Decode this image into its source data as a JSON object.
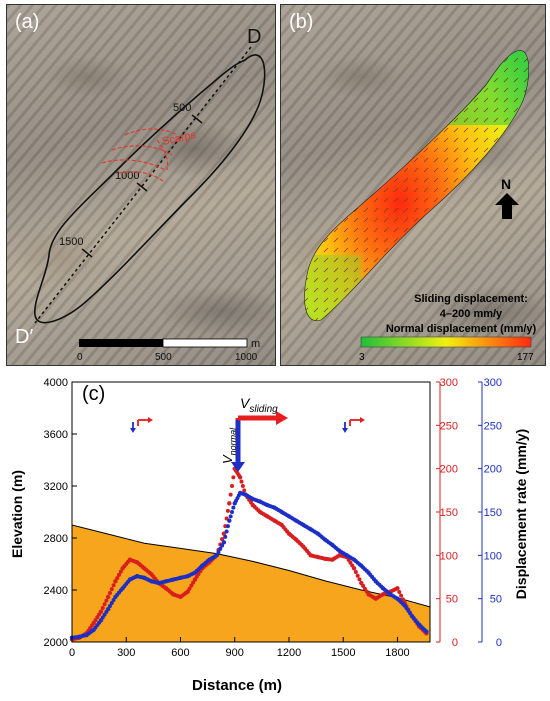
{
  "panel_a": {
    "label": "(a)",
    "endpoint_top": "D",
    "endpoint_bottom": "D′",
    "distance_marks": [
      "500",
      "1000",
      "1500"
    ],
    "scarps_label": "Scarps",
    "scarps_color": "#e8322a",
    "scalebar": {
      "unit": "m",
      "ticks": [
        "0",
        "500",
        "1000"
      ]
    }
  },
  "panel_b": {
    "label": "(b)",
    "north_label": "N",
    "legend_title_1": "Sliding displacement:",
    "legend_title_2": "4–200 mm/y",
    "legend_title_3": "Normal displacement (mm/y)",
    "colorbar_min": "3",
    "colorbar_max": "177",
    "colorbar_colors": [
      "#1fbf3a",
      "#f1f10f",
      "#ff2a10"
    ]
  },
  "panel_c": {
    "label": "(c)",
    "arrow_sliding_label": "V",
    "arrow_sliding_sub": "sliding",
    "arrow_normal_label": "V",
    "arrow_normal_sub": "normal",
    "xlabel": "Distance (m)",
    "ylabel_left": "Elevation (m)",
    "ylabel_right": "Displacement rate (mm/y)",
    "x_ticks": [
      "0",
      "300",
      "600",
      "900",
      "1200",
      "1500",
      "1800"
    ],
    "y_left_ticks": [
      "2000",
      "2400",
      "2800",
      "3200",
      "3600",
      "4000"
    ],
    "y_right_red_ticks": [
      "0",
      "50",
      "100",
      "150",
      "200",
      "250",
      "300"
    ],
    "y_right_blue_ticks": [
      "0",
      "50",
      "100",
      "150",
      "200",
      "250",
      "300"
    ],
    "colors": {
      "terrain_fill": "#f7a51c",
      "red_series": "#d81e1e",
      "blue_series": "#1d2fc7"
    }
  },
  "chart_data": {
    "type": "line",
    "title": "",
    "xlabel": "Distance (m)",
    "ylabel": "Elevation (m)",
    "y2label": "Displacement rate (mm/y)",
    "xlim": [
      0,
      1980
    ],
    "ylim": [
      2000,
      4000
    ],
    "y2lim": [
      0,
      300
    ],
    "series": [
      {
        "name": "",
        "axis": "left",
        "style": "area",
        "x": [
          0,
          200,
          400,
          600,
          800,
          1000,
          1200,
          1400,
          1600,
          1800,
          1980
        ],
        "y": [
          2900,
          2830,
          2760,
          2720,
          2680,
          2620,
          2550,
          2470,
          2400,
          2340,
          2270
        ]
      },
      {
        "name": "",
        "axis": "right",
        "style": "dots",
        "x": [
          0,
          40,
          80,
          120,
          160,
          200,
          240,
          280,
          320,
          360,
          400,
          440,
          480,
          520,
          560,
          600,
          640,
          680,
          720,
          760,
          800,
          840,
          870,
          900,
          930,
          960,
          1000,
          1040,
          1080,
          1120,
          1160,
          1200,
          1240,
          1280,
          1320,
          1360,
          1400,
          1440,
          1480,
          1520,
          1560,
          1600,
          1640,
          1680,
          1720,
          1760,
          1800,
          1840,
          1880,
          1920,
          1960
        ],
        "y": [
          3,
          5,
          10,
          22,
          35,
          52,
          70,
          85,
          95,
          92,
          85,
          78,
          68,
          62,
          55,
          52,
          58,
          72,
          85,
          92,
          100,
          125,
          160,
          200,
          190,
          170,
          158,
          150,
          145,
          140,
          135,
          125,
          118,
          110,
          100,
          98,
          96,
          95,
          100,
          98,
          85,
          68,
          55,
          50,
          55,
          58,
          62,
          45,
          30,
          18,
          10
        ]
      },
      {
        "name": "",
        "axis": "right",
        "style": "dots",
        "x": [
          0,
          40,
          80,
          120,
          160,
          200,
          240,
          280,
          320,
          360,
          400,
          440,
          480,
          520,
          560,
          600,
          640,
          680,
          720,
          760,
          800,
          840,
          870,
          900,
          930,
          960,
          1000,
          1040,
          1080,
          1120,
          1160,
          1200,
          1240,
          1280,
          1320,
          1360,
          1400,
          1440,
          1480,
          1520,
          1560,
          1600,
          1640,
          1680,
          1720,
          1760,
          1800,
          1840,
          1880,
          1920,
          1960
        ],
        "y": [
          5,
          6,
          8,
          14,
          25,
          38,
          52,
          62,
          72,
          76,
          74,
          70,
          68,
          70,
          72,
          74,
          76,
          80,
          88,
          95,
          100,
          115,
          140,
          160,
          172,
          170,
          165,
          162,
          158,
          155,
          150,
          145,
          140,
          135,
          130,
          125,
          118,
          112,
          105,
          100,
          95,
          88,
          80,
          70,
          62,
          55,
          50,
          42,
          30,
          20,
          12
        ]
      }
    ]
  }
}
